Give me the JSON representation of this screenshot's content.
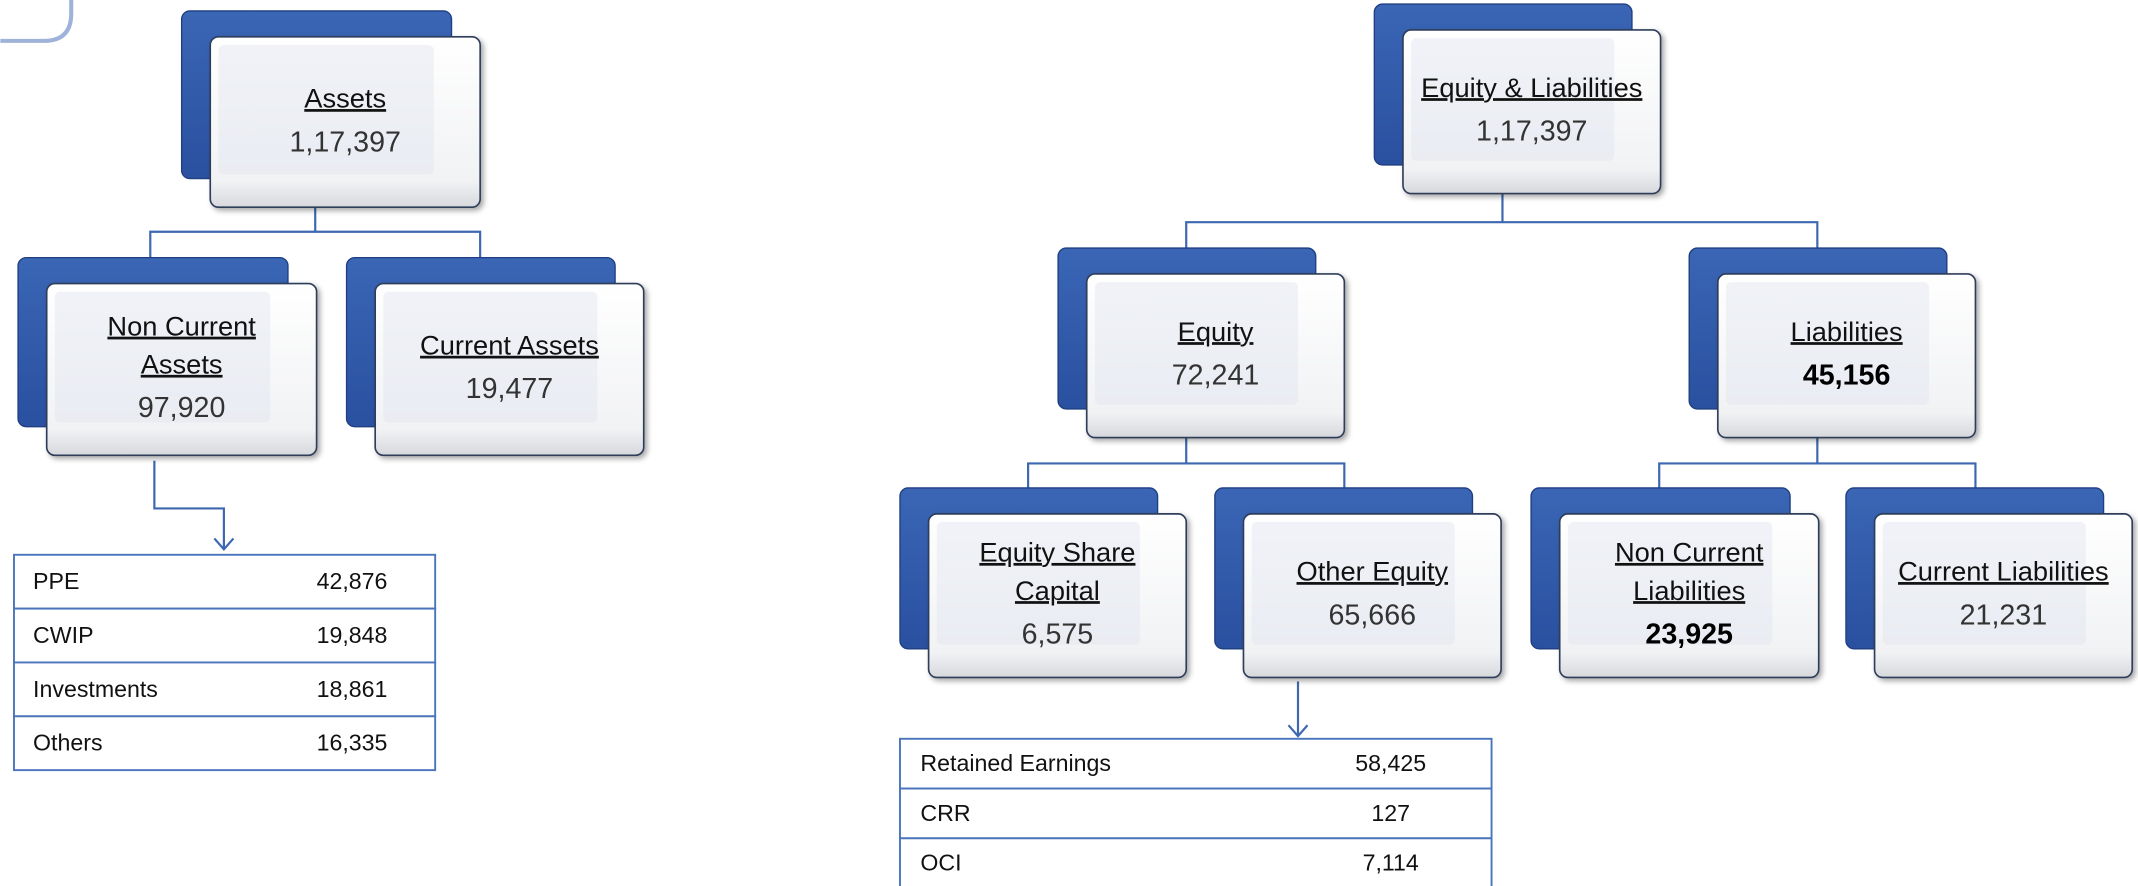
{
  "nodes": [
    {
      "label": "Assets",
      "value": "1,17,397"
    },
    {
      "label": "Non Current Assets",
      "value": "97,920"
    },
    {
      "label": "Current Assets",
      "value": "19,477"
    },
    {
      "label": "Equity & Liabilities",
      "value": "1,17,397"
    },
    {
      "label": "Equity",
      "value": "72,241"
    },
    {
      "label": "Liabilities",
      "value": "45,156"
    },
    {
      "label": "Equity Share Capital",
      "value": "6,575"
    },
    {
      "label": "Other Equity",
      "value": "65,666"
    },
    {
      "label": "Non Current Liabilities",
      "value": "23,925"
    },
    {
      "label": "Current Liabilities",
      "value": "21,231"
    }
  ],
  "tables": [
    {
      "rows": [
        [
          "PPE",
          "42,876"
        ],
        [
          "CWIP",
          "19,848"
        ],
        [
          "Investments",
          "18,861"
        ],
        [
          "Others",
          "16,335"
        ]
      ]
    },
    {
      "rows": [
        [
          "Retained Earnings",
          "58,425"
        ],
        [
          "CRR",
          "127"
        ],
        [
          "OCI",
          "7,114"
        ]
      ]
    }
  ]
}
